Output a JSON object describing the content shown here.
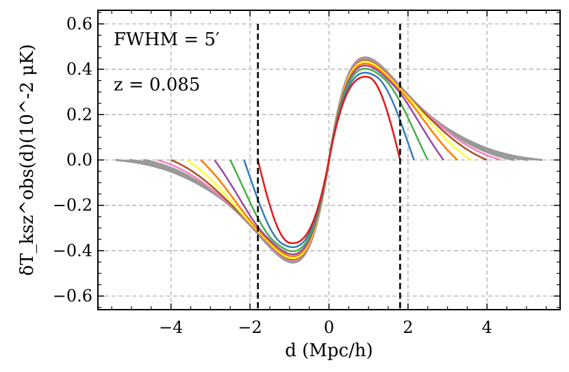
{
  "chart_data": {
    "type": "line",
    "title": "",
    "xlabel": "d (Mpc/h)",
    "ylabel": "δT_ksz^obs(d)(10^-2 μK)",
    "xlim": [
      -5.85,
      5.85
    ],
    "ylim": [
      -0.66,
      0.66
    ],
    "x_ticks": [
      -4,
      -2,
      0,
      2,
      4
    ],
    "x_tick_labels": [
      "−4",
      "−2",
      "0",
      "2",
      "4"
    ],
    "y_ticks": [
      -0.6,
      -0.4,
      -0.2,
      0.0,
      0.2,
      0.4,
      0.6
    ],
    "y_tick_labels": [
      "−0.6",
      "−0.4",
      "−0.2",
      "0.0",
      "0.2",
      "0.4",
      "0.6"
    ],
    "grid": true,
    "annotations": [
      "FWHM = 5′",
      "z = 0.085"
    ],
    "vlines": [
      -1.8,
      1.8
    ],
    "series": [
      {
        "color": "#e41a1c",
        "cutoff": 1.8,
        "amp": 0.41
      },
      {
        "color": "#377eb8",
        "cutoff": 2.15,
        "amp": 0.43
      },
      {
        "color": "#4daf4a",
        "cutoff": 2.5,
        "amp": 0.45
      },
      {
        "color": "#984ea3",
        "cutoff": 2.9,
        "amp": 0.465
      },
      {
        "color": "#ff7f00",
        "cutoff": 3.25,
        "amp": 0.475
      },
      {
        "color": "#ffff33",
        "cutoff": 3.6,
        "amp": 0.485
      },
      {
        "color": "#a65628",
        "cutoff": 4.0,
        "amp": 0.49
      },
      {
        "color": "#f781bf",
        "cutoff": 4.35,
        "amp": 0.495
      },
      {
        "color": "#999999",
        "cutoff": 4.7,
        "amp": 0.5
      },
      {
        "color": "#999999",
        "cutoff": 5.05,
        "amp": 0.502
      },
      {
        "color": "#999999",
        "cutoff": 5.4,
        "amp": 0.505
      }
    ]
  }
}
